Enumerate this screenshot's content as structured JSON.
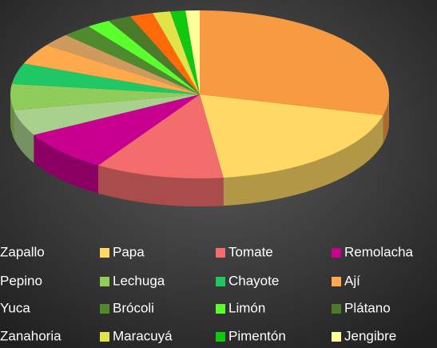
{
  "chart_data": {
    "type": "pie",
    "style": "3d",
    "legend": "bottom",
    "categories": [
      "Zapallo",
      "Papa",
      "Tomate",
      "Remolacha",
      "Pepino",
      "Lechuga",
      "Chayote",
      "Ají",
      "Yuca",
      "Brócoli",
      "Limón",
      "Plátano",
      "Zanahoria",
      "Maracuyá",
      "Pimentón",
      "Jengibre"
    ],
    "values": [
      29,
      19,
      11,
      8,
      5,
      5,
      4,
      4,
      2.5,
      2.5,
      2,
      2,
      2,
      1.5,
      1.3,
      1.2
    ],
    "colors": [
      "#f79a42",
      "#ffd966",
      "#f46d6d",
      "#c8008f",
      "#a9d18e",
      "#8fcc5a",
      "#1fc765",
      "#ffa94d",
      "#cf9a5e",
      "#4f8a2e",
      "#5cff2e",
      "#4b7a2c",
      "#ff6a0a",
      "#e2e24a",
      "#10c810",
      "#ffff99"
    ]
  }
}
